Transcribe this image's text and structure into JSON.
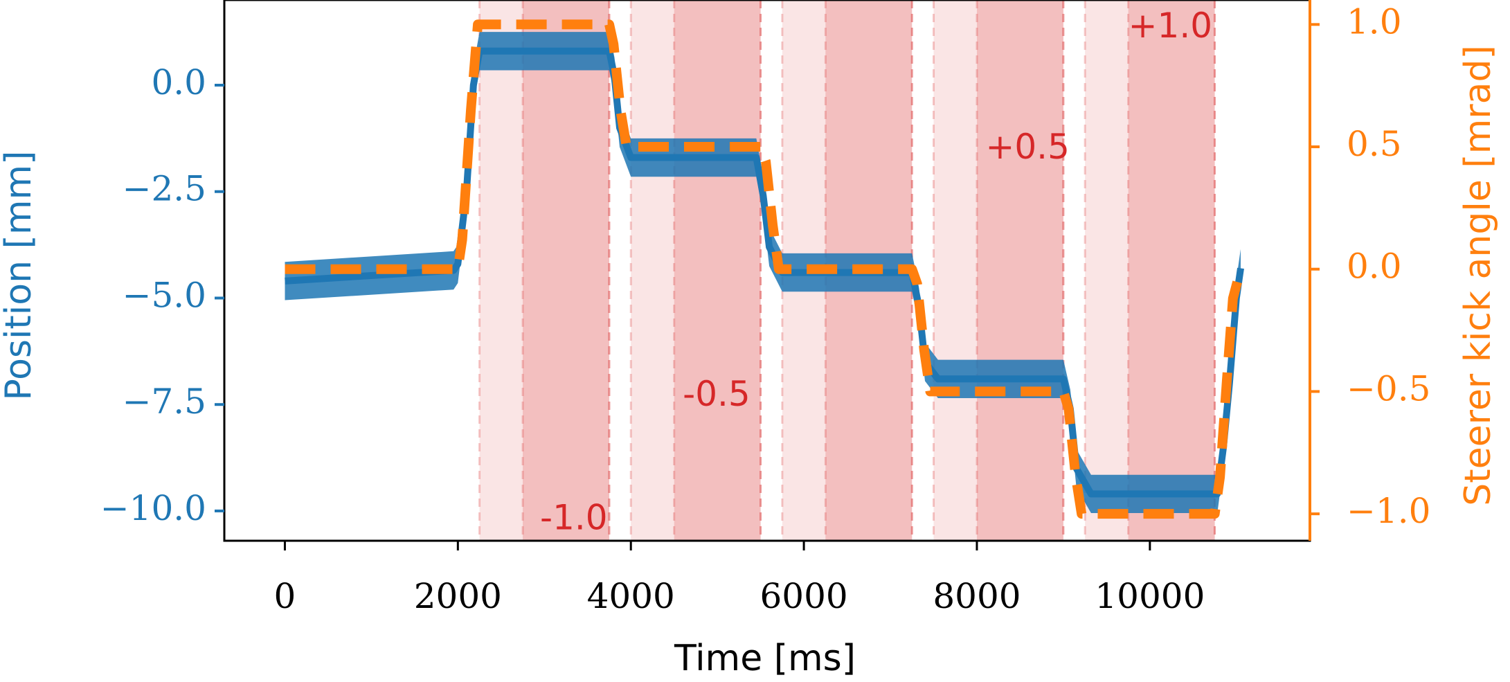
{
  "chart_data": {
    "type": "line",
    "xlabel": "Time [ms]",
    "ylabel_left": "Position [mm]",
    "ylabel_right": "Steerer kick angle [mrad]",
    "xlim": [
      -700,
      11850
    ],
    "ylim_left": [
      -10.7,
      2.0
    ],
    "ylim_right": [
      -1.11,
      1.1
    ],
    "x_ticks": [
      0,
      2000,
      4000,
      6000,
      8000,
      10000
    ],
    "x_tick_labels": [
      "0",
      "2000",
      "4000",
      "6000",
      "8000",
      "10000"
    ],
    "y_left_ticks": [
      0.0,
      -2.5,
      -5.0,
      -7.5,
      -10.0
    ],
    "y_left_tick_labels": [
      "0.0",
      "−2.5",
      "−5.0",
      "−7.5",
      "−10.0"
    ],
    "y_right_ticks": [
      1.0,
      0.5,
      0.0,
      -0.5,
      -1.0
    ],
    "y_right_tick_labels": [
      "1.0",
      "0.5",
      "0.0",
      "−0.5",
      "−1.0"
    ],
    "grid": false,
    "series": [
      {
        "name": "Position",
        "axis": "left",
        "color": "#1f77b4",
        "style": "solid-noisy",
        "noise_band_mm": 0.9,
        "x": [
          0,
          1950,
          2000,
          2100,
          2180,
          2250,
          3750,
          3810,
          3870,
          4000,
          5450,
          5530,
          5600,
          5750,
          7250,
          7330,
          7400,
          7550,
          9000,
          9080,
          9150,
          9320,
          10780,
          10850,
          10920,
          11000,
          11050
        ],
        "y": [
          -4.6,
          -4.35,
          -4.2,
          -2.5,
          0.0,
          0.8,
          0.8,
          0.2,
          -1.0,
          -1.7,
          -1.7,
          -2.6,
          -3.8,
          -4.4,
          -4.4,
          -5.2,
          -6.5,
          -6.9,
          -6.9,
          -7.6,
          -9.0,
          -9.6,
          -9.6,
          -8.5,
          -7.0,
          -5.0,
          -4.3
        ]
      },
      {
        "name": "Steerer kick angle",
        "axis": "right",
        "color": "#ff7f0e",
        "style": "dashed",
        "x": [
          0,
          2000,
          2050,
          2150,
          2230,
          3750,
          3800,
          3880,
          3950,
          5500,
          5560,
          5640,
          5710,
          7250,
          7310,
          7390,
          7460,
          9000,
          9060,
          9140,
          9210,
          10750,
          10810,
          10890,
          10960,
          11050
        ],
        "y": [
          0.0,
          0.0,
          0.12,
          0.65,
          1.0,
          1.0,
          0.92,
          0.65,
          0.5,
          0.5,
          0.44,
          0.18,
          0.0,
          0.0,
          -0.06,
          -0.33,
          -0.5,
          -0.5,
          -0.57,
          -0.84,
          -1.0,
          -1.0,
          -0.85,
          -0.45,
          -0.12,
          0.0
        ]
      }
    ],
    "shaded_regions": [
      {
        "x0": 2250,
        "x1": 3750,
        "shade": "light"
      },
      {
        "x0": 2750,
        "x1": 3750,
        "shade": "dark"
      },
      {
        "x0": 4000,
        "x1": 5500,
        "shade": "light"
      },
      {
        "x0": 4500,
        "x1": 5500,
        "shade": "dark"
      },
      {
        "x0": 5750,
        "x1": 7250,
        "shade": "light"
      },
      {
        "x0": 6250,
        "x1": 7250,
        "shade": "dark"
      },
      {
        "x0": 7500,
        "x1": 9000,
        "shade": "light"
      },
      {
        "x0": 8000,
        "x1": 9000,
        "shade": "dark"
      },
      {
        "x0": 9250,
        "x1": 10750,
        "shade": "light"
      },
      {
        "x0": 9750,
        "x1": 10750,
        "shade": "dark"
      }
    ],
    "shade_color": "#d62728",
    "annotations": [
      {
        "text": "-1.0",
        "x": 2950,
        "y_right": -1.025
      },
      {
        "text": "-0.5",
        "x": 4600,
        "y_right": -0.52
      },
      {
        "text": "+0.5",
        "x": 8100,
        "y_right": 0.49
      },
      {
        "text": "+1.0",
        "x": 9750,
        "y_right": 0.985
      }
    ]
  }
}
